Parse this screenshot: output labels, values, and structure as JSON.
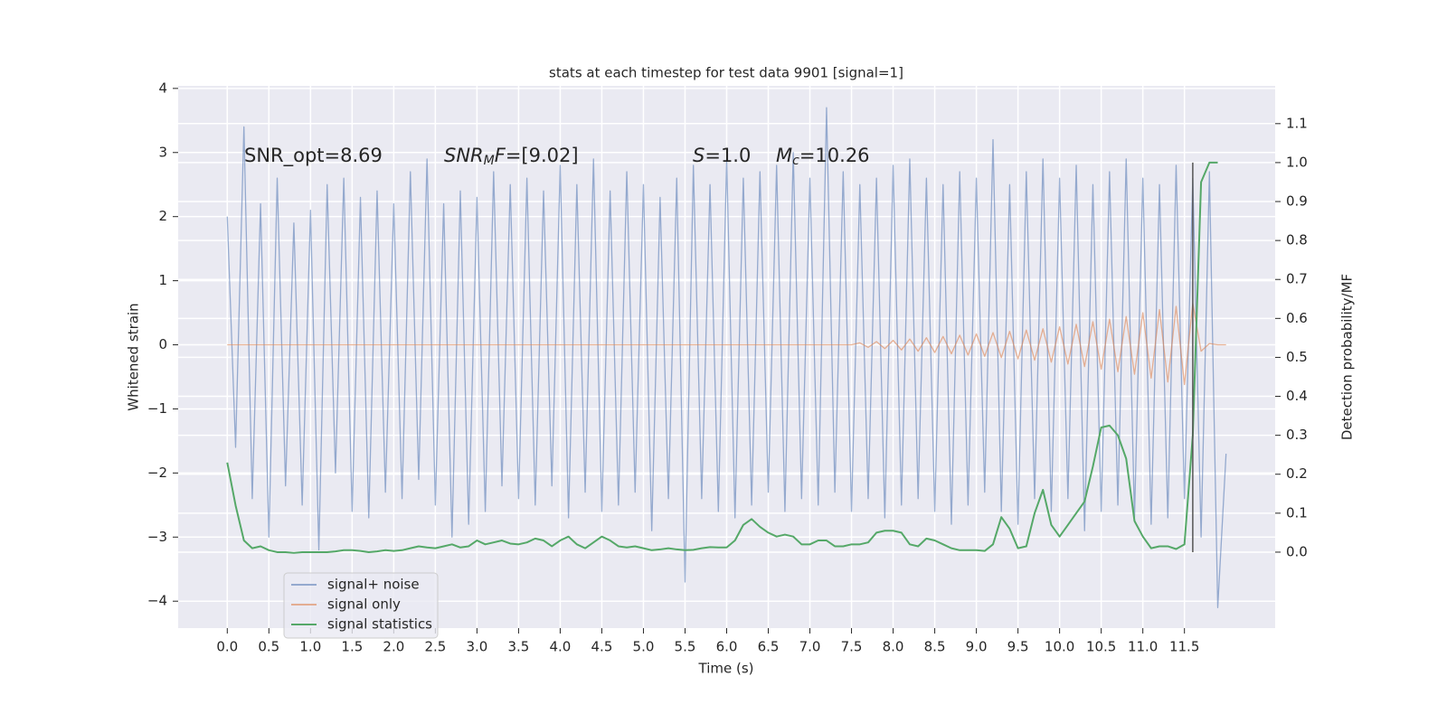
{
  "chart_data": {
    "type": "line",
    "title": "stats at each timestep for test data 9901 [signal=1]",
    "x_label": "Time (s)",
    "y_label": "Whitened strain",
    "y2_label": "Detection probability/MF",
    "grid": true,
    "legend": "lower left",
    "xlim": [
      -0.59,
      12.59
    ],
    "ylim": [
      -4.42,
      4.04
    ],
    "y2lim": [
      -0.195,
      1.197
    ],
    "xticks": [
      {
        "value": 0,
        "label": "0.0"
      },
      {
        "value": 0.5,
        "label": "0.5"
      },
      {
        "value": 1,
        "label": "1.0"
      },
      {
        "value": 1.5,
        "label": "1.5"
      },
      {
        "value": 2,
        "label": "2.0"
      },
      {
        "value": 2.5,
        "label": "2.5"
      },
      {
        "value": 3,
        "label": "3.0"
      },
      {
        "value": 3.5,
        "label": "3.5"
      },
      {
        "value": 4,
        "label": "4.0"
      },
      {
        "value": 4.5,
        "label": "4.5"
      },
      {
        "value": 5,
        "label": "5.0"
      },
      {
        "value": 5.5,
        "label": "5.5"
      },
      {
        "value": 6,
        "label": "6.0"
      },
      {
        "value": 6.5,
        "label": "6.5"
      },
      {
        "value": 7,
        "label": "7.0"
      },
      {
        "value": 7.5,
        "label": "7.5"
      },
      {
        "value": 8,
        "label": "8.0"
      },
      {
        "value": 8.5,
        "label": "8.5"
      },
      {
        "value": 9,
        "label": "9.0"
      },
      {
        "value": 9.5,
        "label": "9.5"
      },
      {
        "value": 10,
        "label": "10.0"
      },
      {
        "value": 10.5,
        "label": "10.5"
      },
      {
        "value": 11,
        "label": "11.0"
      },
      {
        "value": 11.5,
        "label": "11.5"
      }
    ],
    "yticks": [
      {
        "value": -4,
        "label": "−4"
      },
      {
        "value": -3,
        "label": "−3"
      },
      {
        "value": -2,
        "label": "−2"
      },
      {
        "value": -1,
        "label": "−1"
      },
      0,
      1,
      2,
      3,
      4
    ],
    "y2ticks": [
      {
        "value": 0,
        "label": "0.0"
      },
      {
        "value": 0.1,
        "label": "0.1"
      },
      {
        "value": 0.2,
        "label": "0.2"
      },
      {
        "value": 0.3,
        "label": "0.3"
      },
      {
        "value": 0.4,
        "label": "0.4"
      },
      {
        "value": 0.5,
        "label": "0.5"
      },
      {
        "value": 0.6,
        "label": "0.6"
      },
      {
        "value": 0.7,
        "label": "0.7"
      },
      {
        "value": 0.8,
        "label": "0.8"
      },
      {
        "value": 0.9,
        "label": "0.9"
      },
      {
        "value": 1,
        "label": "1.0"
      },
      {
        "value": 1.1,
        "label": "1.1"
      }
    ],
    "annotations": [
      [
        {
          "text": "SNR_opt=8.69"
        }
      ],
      [
        {
          "text": "SNR",
          "italic": true
        },
        {
          "text": "M",
          "italic": true,
          "sub": true
        },
        {
          "text": "F",
          "italic": true
        },
        {
          "text": "=[9.02]"
        }
      ],
      [
        {
          "text": "S",
          "italic": true
        },
        {
          "text": "=1.0"
        }
      ],
      [
        {
          "text": "M",
          "italic": true
        },
        {
          "text": "c",
          "italic": true,
          "sub": true
        },
        {
          "text": "=10.26"
        }
      ]
    ],
    "vline": {
      "x": 11.6,
      "y2": [
        0,
        1
      ]
    },
    "x": [
      0,
      0.1,
      0.2,
      0.3,
      0.4,
      0.5,
      0.6,
      0.7,
      0.8,
      0.9,
      1,
      1.1,
      1.2,
      1.3,
      1.4,
      1.5,
      1.6,
      1.7,
      1.8,
      1.9,
      2,
      2.1,
      2.2,
      2.3,
      2.4,
      2.5,
      2.6,
      2.7,
      2.8,
      2.9,
      3,
      3.1,
      3.2,
      3.3,
      3.4,
      3.5,
      3.6,
      3.7,
      3.8,
      3.9,
      4,
      4.1,
      4.2,
      4.3,
      4.4,
      4.5,
      4.6,
      4.7,
      4.8,
      4.9,
      5,
      5.1,
      5.2,
      5.3,
      5.4,
      5.5,
      5.6,
      5.7,
      5.8,
      5.9,
      6,
      6.1,
      6.2,
      6.3,
      6.4,
      6.5,
      6.6,
      6.7,
      6.8,
      6.9,
      7,
      7.1,
      7.2,
      7.3,
      7.4,
      7.5,
      7.6,
      7.7,
      7.8,
      7.9,
      8,
      8.1,
      8.2,
      8.3,
      8.4,
      8.5,
      8.6,
      8.7,
      8.8,
      8.9,
      9,
      9.1,
      9.2,
      9.3,
      9.4,
      9.5,
      9.6,
      9.7,
      9.8,
      9.9,
      10,
      10.1,
      10.2,
      10.3,
      10.4,
      10.5,
      10.6,
      10.7,
      10.8,
      10.9,
      11,
      11.1,
      11.2,
      11.3,
      11.4,
      11.5,
      11.6,
      11.7,
      11.8,
      11.9,
      12
    ],
    "series": [
      {
        "name": "signal+ noise",
        "color": "#4c72b0",
        "alpha": 0.55,
        "values": [
          2.0,
          -1.6,
          3.4,
          -2.4,
          2.2,
          -3.0,
          2.6,
          -2.2,
          1.9,
          -2.5,
          2.1,
          -3.2,
          2.5,
          -2.0,
          2.6,
          -2.6,
          2.3,
          -2.7,
          2.4,
          -2.3,
          2.2,
          -2.4,
          2.7,
          -2.1,
          2.9,
          -2.5,
          2.2,
          -3.0,
          2.4,
          -2.8,
          2.3,
          -2.6,
          2.7,
          -2.2,
          2.5,
          -2.4,
          2.6,
          -2.5,
          2.4,
          -2.2,
          2.8,
          -2.7,
          2.5,
          -2.3,
          2.9,
          -2.6,
          2.4,
          -2.5,
          2.7,
          -2.3,
          2.5,
          -2.9,
          2.3,
          -2.4,
          2.6,
          -3.7,
          2.8,
          -2.4,
          2.5,
          -2.6,
          2.9,
          -2.7,
          2.6,
          -2.5,
          2.7,
          -2.3,
          2.8,
          -2.6,
          3.0,
          -2.4,
          2.6,
          -2.5,
          3.7,
          -2.3,
          2.7,
          -2.6,
          2.5,
          -2.4,
          2.6,
          -2.7,
          2.8,
          -2.5,
          2.9,
          -2.4,
          2.6,
          -2.6,
          2.5,
          -2.8,
          2.7,
          -2.5,
          2.6,
          -2.3,
          3.2,
          -2.6,
          2.5,
          -2.8,
          2.7,
          -2.4,
          2.9,
          -2.6,
          2.6,
          -2.4,
          2.8,
          -2.9,
          2.5,
          -2.6,
          2.7,
          -2.5,
          2.9,
          -2.7,
          2.6,
          -2.8,
          2.5,
          -2.7,
          2.8,
          -2.4,
          2.6,
          -3.0,
          2.7,
          -4.1,
          -1.7
        ]
      },
      {
        "name": "signal only",
        "color": "#dd8452",
        "alpha": 0.6,
        "values": [
          0,
          0,
          0,
          0,
          0,
          0,
          0,
          0,
          0,
          0,
          0,
          0,
          0,
          0,
          0,
          0,
          0,
          0,
          0,
          0,
          0,
          0,
          0,
          0,
          0,
          0,
          0,
          0,
          0,
          0,
          0,
          0,
          0,
          0,
          0,
          0,
          0,
          0,
          0,
          0,
          0,
          0,
          0,
          0,
          0,
          0,
          0,
          0,
          0,
          0,
          0,
          0,
          0,
          0,
          0,
          0,
          0,
          0,
          0,
          0,
          0,
          0,
          0,
          0,
          0,
          0,
          0,
          0,
          0,
          0,
          0,
          0,
          0,
          0,
          0,
          0,
          0.03,
          -0.04,
          0.05,
          -0.06,
          0.07,
          -0.08,
          0.09,
          -0.1,
          0.11,
          -0.12,
          0.13,
          -0.14,
          0.15,
          -0.16,
          0.17,
          -0.18,
          0.19,
          -0.2,
          0.21,
          -0.22,
          0.23,
          -0.24,
          0.25,
          -0.27,
          0.28,
          -0.3,
          0.32,
          -0.34,
          0.36,
          -0.38,
          0.4,
          -0.42,
          0.44,
          -0.46,
          0.5,
          -0.52,
          0.55,
          -0.58,
          0.6,
          -0.62,
          0.65,
          -0.1,
          0.02,
          0,
          0
        ]
      },
      {
        "name": "signal statistics",
        "color": "#55a868",
        "alpha": 1,
        "axis": "y2",
        "values": [
          0.23,
          0.12,
          0.03,
          0.01,
          0.015,
          0.005,
          0,
          0,
          -0.002,
          0,
          0,
          0,
          0,
          0.002,
          0.005,
          0.005,
          0.003,
          0,
          0.002,
          0.005,
          0.003,
          0.005,
          0.01,
          0.015,
          0.012,
          0.01,
          0.015,
          0.02,
          0.012,
          0.015,
          0.03,
          0.02,
          0.025,
          0.03,
          0.022,
          0.02,
          0.025,
          0.035,
          0.03,
          0.015,
          0.03,
          0.04,
          0.02,
          0.01,
          0.025,
          0.04,
          0.03,
          0.015,
          0.012,
          0.015,
          0.01,
          0.005,
          0.007,
          0.01,
          0.007,
          0.005,
          0.006,
          0.01,
          0.013,
          0.012,
          0.012,
          0.03,
          0.07,
          0.085,
          0.065,
          0.05,
          0.04,
          0.045,
          0.04,
          0.02,
          0.02,
          0.03,
          0.03,
          0.015,
          0.015,
          0.02,
          0.02,
          0.025,
          0.05,
          0.055,
          0.055,
          0.05,
          0.02,
          0.015,
          0.035,
          0.03,
          0.02,
          0.01,
          0.005,
          0.005,
          0.005,
          0.003,
          0.02,
          0.09,
          0.06,
          0.01,
          0.015,
          0.1,
          0.16,
          0.07,
          0.04,
          0.07,
          0.1,
          0.13,
          0.22,
          0.32,
          0.325,
          0.3,
          0.24,
          0.08,
          0.04,
          0.01,
          0.015,
          0.015,
          0.008,
          0.02,
          0.3,
          0.95,
          1.0,
          1.0,
          null
        ]
      }
    ]
  }
}
